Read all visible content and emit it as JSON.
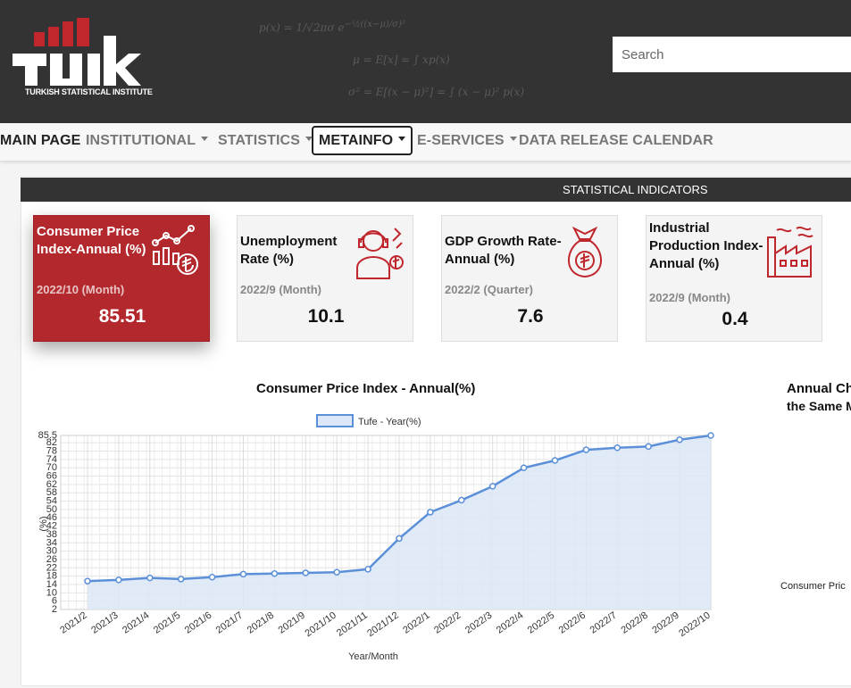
{
  "header": {
    "logo_text": "TÜİK",
    "logo_subtitle": "TURKISH STATISTICAL INSTITUTE",
    "search_placeholder": "Search"
  },
  "nav": {
    "items": [
      {
        "label": "MAIN PAGE",
        "caret": false
      },
      {
        "label": "INSTITUTIONAL",
        "caret": true
      },
      {
        "label": "STATISTICS",
        "caret": true
      },
      {
        "label": "METAINFO",
        "caret": true
      },
      {
        "label": "E-SERVICES",
        "caret": true
      },
      {
        "label": "DATA RELEASE CALENDAR",
        "caret": false
      }
    ]
  },
  "indicators": {
    "heading": "STATISTICAL INDICATORS",
    "cards": [
      {
        "title": "Consumer Price Index-Annual (%)",
        "period": "2022/10 (Month)",
        "value": "85.51",
        "icon": "chart-lira-icon"
      },
      {
        "title": "Unemployment Rate (%)",
        "period": "2022/9 (Month)",
        "value": "10.1",
        "icon": "worker-headset-icon"
      },
      {
        "title": "GDP Growth Rate-Annual (%)",
        "period": "2022/2 (Quarter)",
        "value": "7.6",
        "icon": "money-bag-icon"
      },
      {
        "title": "Industrial Production Index-Annual (%)",
        "period": "2022/9 (Month)",
        "value": "0.4",
        "icon": "factory-icon"
      }
    ]
  },
  "colors": {
    "header": "#333333",
    "accent_red": "#b3282d",
    "line": "#5b8fd8",
    "fill": "#dce7f7"
  },
  "right_chart": {
    "title_partial": "Annual Ch",
    "subtitle_partial": "the Same M",
    "legend_partial": "Consumer Pric"
  },
  "chart_data": {
    "type": "line",
    "title": "Consumer Price Index - Annual(%)",
    "legend": "Tufe - Year(%)",
    "xlabel": "Year/Month",
    "ylabel": "(%)",
    "categories": [
      "2021/2",
      "2021/3",
      "2021/4",
      "2021/5",
      "2021/6",
      "2021/7",
      "2021/8",
      "2021/9",
      "2021/10",
      "2021/11",
      "2021/12",
      "2022/1",
      "2022/2",
      "2022/3",
      "2022/4",
      "2022/5",
      "2022/6",
      "2022/7",
      "2022/8",
      "2022/9",
      "2022/10"
    ],
    "values": [
      15.61,
      16.19,
      17.14,
      16.59,
      17.53,
      18.95,
      19.25,
      19.58,
      19.89,
      21.31,
      36.08,
      48.69,
      54.44,
      61.14,
      69.97,
      73.5,
      78.62,
      79.6,
      80.21,
      83.45,
      85.51
    ],
    "yticks": [
      2,
      6,
      10,
      14,
      18,
      22,
      26,
      30,
      34,
      38,
      42,
      46,
      50,
      54,
      58,
      62,
      66,
      70,
      74,
      78,
      82,
      85.5
    ],
    "ylim": [
      2,
      85.5
    ],
    "grid": true
  }
}
